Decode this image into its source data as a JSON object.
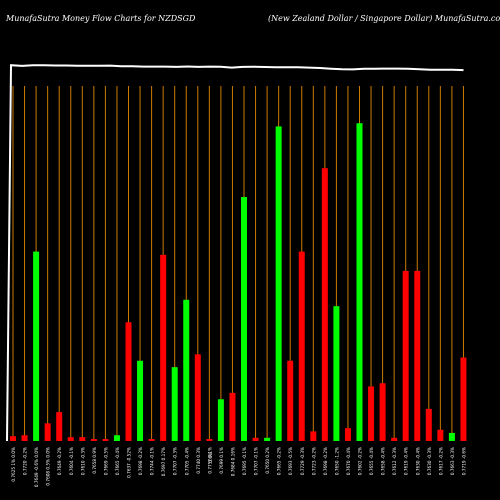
{
  "header": {
    "title_left": "MunafaSutra  Money Flow  Charts for NZDSGD",
    "title_right": "(New  Zealand Dollar / Singapore   Dollar) MunafaSutra.com"
  },
  "colors": {
    "background": "#000000",
    "up": "#00ff00",
    "down": "#ff0000",
    "grid": "#cc7a00",
    "line": "#ffffff",
    "label": "#ffffff"
  },
  "chart_data": {
    "type": "bar",
    "title": "MunafaSutra  Money Flow  Charts for NZDSGD",
    "grid": true,
    "ylim": [
      0,
      100
    ],
    "bars": [
      {
        "label": "0.7625 1% 0.0%",
        "value": 1.5,
        "dir": "down"
      },
      {
        "label": "0.7720 -0.2%",
        "value": 1.8,
        "dir": "down"
      },
      {
        "label": "0.7649 -0.6% 0.0%",
        "value": 59,
        "dir": "up"
      },
      {
        "label": "0.7608 0.5% 0.0%",
        "value": 5.5,
        "dir": "down"
      },
      {
        "label": "0.7649 -0.2%",
        "value": 9,
        "dir": "down"
      },
      {
        "label": "0.7604 -0.1%",
        "value": 1.2,
        "dir": "down"
      },
      {
        "label": "0.7610 -0.3%",
        "value": 1.2,
        "dir": "down"
      },
      {
        "label": "0.7658 0.9%",
        "value": 0.6,
        "dir": "down"
      },
      {
        "label": "0.7669 -0.5%",
        "value": 0.6,
        "dir": "down"
      },
      {
        "label": "0.7665 -0.4%",
        "value": 1.8,
        "dir": "up"
      },
      {
        "label": "0.7637 -0.52%",
        "value": 37,
        "dir": "down"
      },
      {
        "label": "0.7698 -0.2%",
        "value": 25,
        "dir": "up"
      },
      {
        "label": "0.7744 -0.1%",
        "value": 0.6,
        "dir": "down"
      },
      {
        "label": "0.7697 0.17%",
        "value": 58,
        "dir": "down"
      },
      {
        "label": "0.7707 -0.3%",
        "value": 23,
        "dir": "up"
      },
      {
        "label": "0.7705 -0.4%",
        "value": 44,
        "dir": "up"
      },
      {
        "label": "0.7740 0.3%",
        "value": 27,
        "dir": "down"
      },
      {
        "label": "0.7757 0.1%",
        "value": 0.6,
        "dir": "down"
      },
      {
        "label": "0.7699 0.1%",
        "value": 13,
        "dir": "up"
      },
      {
        "label": "0.7684 0.16%",
        "value": 15,
        "dir": "down"
      },
      {
        "label": "0.7695 -0.1%",
        "value": 76,
        "dir": "up"
      },
      {
        "label": "0.7707 -0.1%",
        "value": 1,
        "dir": "down"
      },
      {
        "label": "0.7650 0.2%",
        "value": 1,
        "dir": "up"
      },
      {
        "label": "0.7665 -0.2%",
        "value": 98,
        "dir": "up"
      },
      {
        "label": "0.7693 -0.5%",
        "value": 25,
        "dir": "down"
      },
      {
        "label": "0.7729 -0.3%",
        "value": 59,
        "dir": "down"
      },
      {
        "label": "0.7723 -0.2%",
        "value": 3,
        "dir": "down"
      },
      {
        "label": "0.7698 -0.2%",
        "value": 85,
        "dir": "down"
      },
      {
        "label": "0.7650 -1.2%",
        "value": 42,
        "dir": "up"
      },
      {
        "label": "0.7670 -0.4%",
        "value": 4,
        "dir": "down"
      },
      {
        "label": "0.7602 -0.2%",
        "value": 99,
        "dir": "up"
      },
      {
        "label": "0.7655 -0.4%",
        "value": 17,
        "dir": "down"
      },
      {
        "label": "0.7658 -0.4%",
        "value": 18,
        "dir": "down"
      },
      {
        "label": "0.7612 -0.3%",
        "value": 1,
        "dir": "down"
      },
      {
        "label": "0.7619 -0.4%",
        "value": 53,
        "dir": "down"
      },
      {
        "label": "0.7630 -0.4%",
        "value": 53,
        "dir": "down"
      },
      {
        "label": "0.7630 -0.3%",
        "value": 10,
        "dir": "down"
      },
      {
        "label": "0.7617 -0.2%",
        "value": 3.5,
        "dir": "down"
      },
      {
        "label": "0.7663 -0.3%",
        "value": 2.5,
        "dir": "up"
      },
      {
        "label": "0.7719 -0.6%",
        "value": 26,
        "dir": "down"
      }
    ],
    "price_line": [
      82,
      81.5,
      82,
      82,
      81.8,
      81.8,
      81.6,
      81.6,
      81.6,
      81.7,
      81.2,
      81.2,
      81,
      81,
      81,
      80.8,
      81.1,
      80.8,
      81,
      80.9,
      80.3,
      80.8,
      80.9,
      80.7,
      80.5,
      80.5,
      80.5,
      80.3,
      80,
      79.5,
      79.1,
      79,
      79.5,
      79.5,
      79.6,
      79.6,
      79.4,
      79.1,
      78.8,
      78.8,
      78.7,
      78.5
    ],
    "mid_annotation": "0.0%"
  }
}
